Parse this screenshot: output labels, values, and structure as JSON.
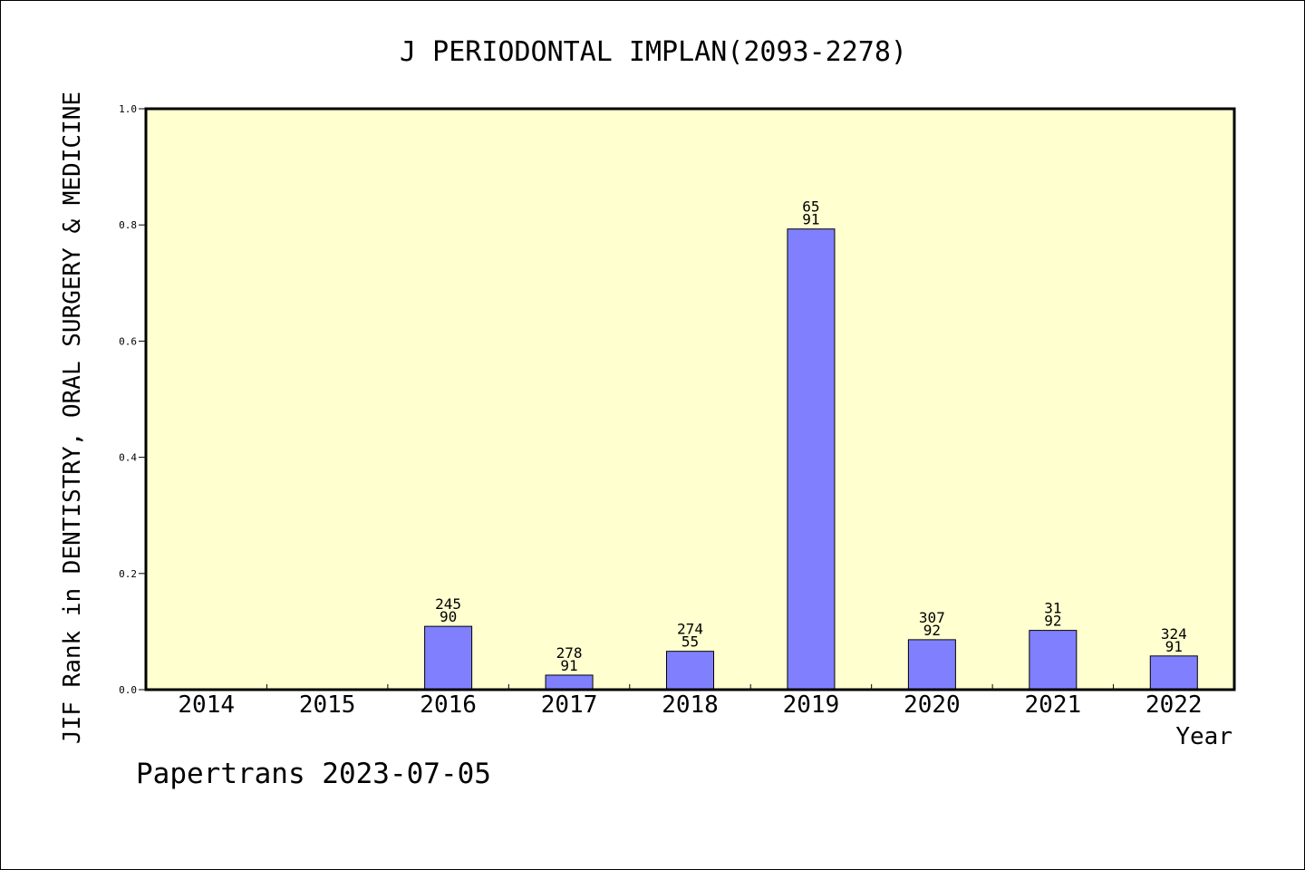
{
  "chart_data": {
    "type": "bar",
    "title": "J PERIODONTAL IMPLAN(2093-2278)",
    "xlabel": "Year",
    "ylabel": "JIF Rank in DENTISTRY, ORAL SURGERY & MEDICINE",
    "categories": [
      "2014",
      "2015",
      "2016",
      "2017",
      "2018",
      "2019",
      "2020",
      "2021",
      "2022"
    ],
    "values": [
      null,
      null,
      0.109,
      0.025,
      0.066,
      0.793,
      0.086,
      0.102,
      0.058
    ],
    "bar_labels": [
      null,
      null,
      [
        "245",
        "90"
      ],
      [
        "278",
        "91"
      ],
      [
        "274",
        "55"
      ],
      [
        "65",
        "91"
      ],
      [
        "307",
        "92"
      ],
      [
        "31",
        "92"
      ],
      [
        "324",
        "91"
      ]
    ],
    "ylim": [
      0,
      1.0
    ],
    "yticks": [
      "0.0",
      "0.2",
      "0.4",
      "0.6",
      "0.8",
      "1.0"
    ],
    "grid": false,
    "colors": {
      "plot_background": "#ffffd0",
      "bar_fill": "#8080ff",
      "bar_stroke": "#000000"
    }
  },
  "footer": {
    "credit": "Papertrans 2023-07-05"
  }
}
